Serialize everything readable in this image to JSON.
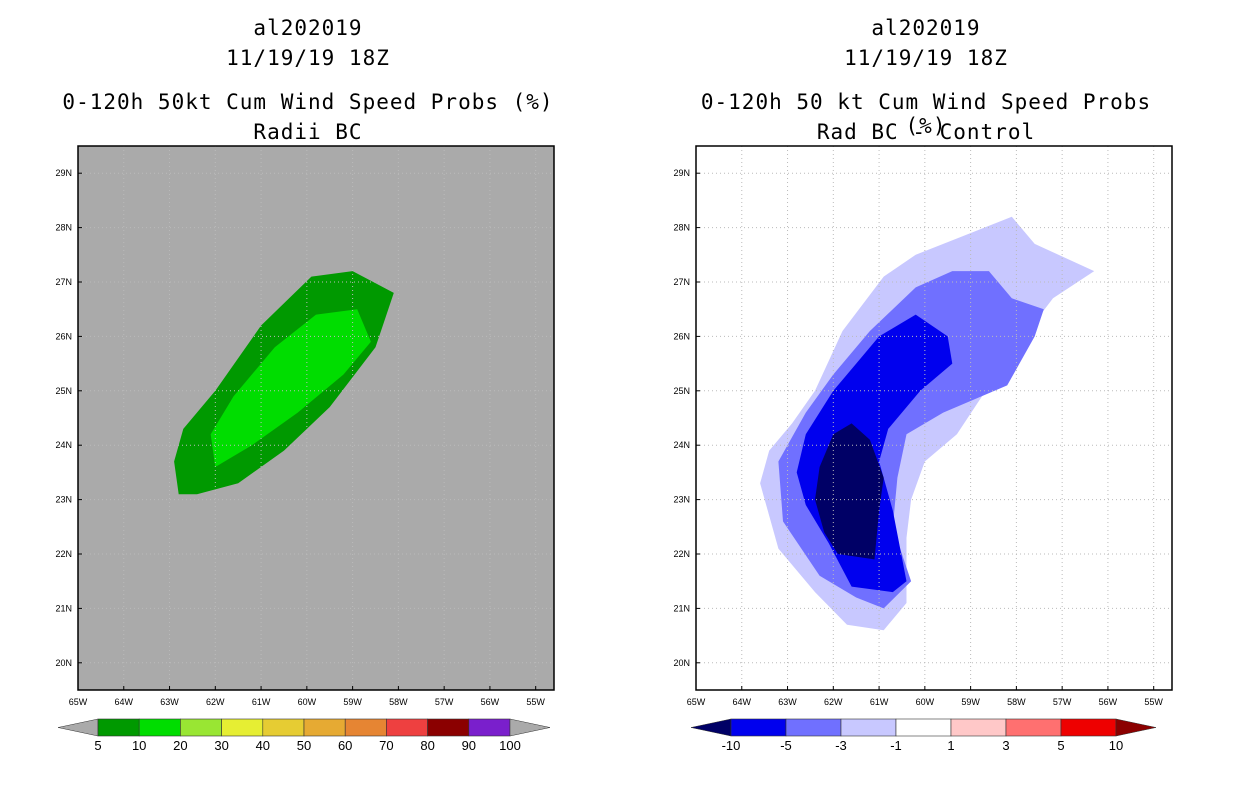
{
  "chart_data": [
    {
      "type": "contour-map",
      "title_lines": [
        "al202019",
        "11/19/19 18Z",
        "0-120h 50kt Cum Wind Speed Probs (%)",
        "Radii BC"
      ],
      "x_ticks": [
        "65W",
        "64W",
        "63W",
        "62W",
        "61W",
        "60W",
        "59W",
        "58W",
        "57W",
        "56W",
        "55W"
      ],
      "y_ticks": [
        "29N",
        "28N",
        "27N",
        "26N",
        "25N",
        "24N",
        "23N",
        "22N",
        "21N",
        "20N"
      ],
      "xlim": [
        -65,
        -54.6
      ],
      "ylim": [
        19.5,
        29.5
      ],
      "grid": true,
      "contours": [
        {
          "level": "5-10",
          "color": "#009900",
          "polygon": [
            [
              -62.8,
              23.1
            ],
            [
              -62.4,
              23.1
            ],
            [
              -61.5,
              23.3
            ],
            [
              -60.5,
              23.9
            ],
            [
              -59.5,
              24.7
            ],
            [
              -58.5,
              25.8
            ],
            [
              -58.1,
              26.8
            ],
            [
              -59.0,
              27.2
            ],
            [
              -59.9,
              27.1
            ],
            [
              -61.0,
              26.2
            ],
            [
              -62.0,
              25.0
            ],
            [
              -62.7,
              24.3
            ],
            [
              -62.9,
              23.7
            ]
          ]
        },
        {
          "level": "10-20",
          "color": "#00dd00",
          "polygon": [
            [
              -62.0,
              23.6
            ],
            [
              -61.2,
              24.0
            ],
            [
              -60.2,
              24.6
            ],
            [
              -59.2,
              25.3
            ],
            [
              -58.6,
              25.9
            ],
            [
              -58.9,
              26.5
            ],
            [
              -59.8,
              26.4
            ],
            [
              -60.7,
              25.8
            ],
            [
              -61.6,
              24.9
            ],
            [
              -62.1,
              24.2
            ]
          ]
        }
      ],
      "colorbar": {
        "labels": [
          "5",
          "10",
          "20",
          "30",
          "40",
          "50",
          "60",
          "70",
          "80",
          "90",
          "100"
        ],
        "colors": [
          "#009900",
          "#00dd00",
          "#99e633",
          "#e6ee33",
          "#e6cc33",
          "#e6aa33",
          "#e68533",
          "#ee4040",
          "#8b0000",
          "#7a1fcc"
        ],
        "under_color": "#aaaaaa",
        "over_color": "#aaaaaa"
      },
      "background_color": "#aaaaaa"
    },
    {
      "type": "contour-map",
      "title_lines": [
        "al202019",
        "11/19/19 18Z",
        "0-120h 50 kt Cum Wind Speed Probs (%)",
        "Rad BC - Control"
      ],
      "x_ticks": [
        "65W",
        "64W",
        "63W",
        "62W",
        "61W",
        "60W",
        "59W",
        "58W",
        "57W",
        "56W",
        "55W"
      ],
      "y_ticks": [
        "29N",
        "28N",
        "27N",
        "26N",
        "25N",
        "24N",
        "23N",
        "22N",
        "21N",
        "20N"
      ],
      "xlim": [
        -65,
        -54.6
      ],
      "ylim": [
        19.5,
        29.5
      ],
      "grid": true,
      "contours": [
        {
          "level": "-3 to -1",
          "color": "#c8c8ff",
          "polygon": [
            [
              -63.6,
              23.3
            ],
            [
              -63.2,
              22.1
            ],
            [
              -62.4,
              21.3
            ],
            [
              -61.7,
              20.7
            ],
            [
              -60.9,
              20.6
            ],
            [
              -60.4,
              21.1
            ],
            [
              -60.4,
              22.3
            ],
            [
              -60.3,
              23.0
            ],
            [
              -60.0,
              23.7
            ],
            [
              -59.3,
              24.2
            ],
            [
              -58.2,
              25.6
            ],
            [
              -57.2,
              26.7
            ],
            [
              -56.3,
              27.2
            ],
            [
              -57.6,
              27.7
            ],
            [
              -58.1,
              28.2
            ],
            [
              -59.3,
              27.8
            ],
            [
              -60.2,
              27.5
            ],
            [
              -60.9,
              27.1
            ],
            [
              -61.8,
              26.1
            ],
            [
              -62.4,
              25.0
            ],
            [
              -62.9,
              24.4
            ],
            [
              -63.4,
              23.9
            ]
          ]
        },
        {
          "level": "-5 to -3",
          "color": "#7070ff",
          "polygon": [
            [
              -63.1,
              22.6
            ],
            [
              -62.3,
              21.6
            ],
            [
              -61.5,
              21.2
            ],
            [
              -60.9,
              21.0
            ],
            [
              -60.3,
              21.5
            ],
            [
              -60.7,
              22.5
            ],
            [
              -60.6,
              23.4
            ],
            [
              -60.4,
              24.2
            ],
            [
              -59.6,
              24.6
            ],
            [
              -58.2,
              25.1
            ],
            [
              -57.6,
              26.0
            ],
            [
              -57.4,
              26.5
            ],
            [
              -58.1,
              26.7
            ],
            [
              -58.6,
              27.2
            ],
            [
              -59.4,
              27.2
            ],
            [
              -60.2,
              26.9
            ],
            [
              -61.2,
              26.1
            ],
            [
              -62.0,
              25.3
            ],
            [
              -62.6,
              24.6
            ],
            [
              -63.2,
              23.7
            ]
          ]
        },
        {
          "level": "-10 to -5",
          "color": "#0000ee",
          "polygon": [
            [
              -62.6,
              22.9
            ],
            [
              -62.1,
              22.2
            ],
            [
              -61.6,
              21.4
            ],
            [
              -60.7,
              21.3
            ],
            [
              -60.4,
              21.5
            ],
            [
              -60.7,
              22.8
            ],
            [
              -61.0,
              23.7
            ],
            [
              -60.8,
              24.3
            ],
            [
              -60.1,
              25.0
            ],
            [
              -59.4,
              25.5
            ],
            [
              -59.5,
              26.0
            ],
            [
              -60.2,
              26.4
            ],
            [
              -61.0,
              26.0
            ],
            [
              -61.5,
              25.5
            ],
            [
              -62.0,
              25.0
            ],
            [
              -62.6,
              24.2
            ],
            [
              -62.8,
              23.5
            ]
          ]
        },
        {
          "level": "< -10",
          "color": "#000066",
          "polygon": [
            [
              -62.2,
              22.4
            ],
            [
              -61.9,
              22.0
            ],
            [
              -61.1,
              21.9
            ],
            [
              -61.0,
              22.8
            ],
            [
              -60.9,
              23.4
            ],
            [
              -61.2,
              24.1
            ],
            [
              -61.6,
              24.4
            ],
            [
              -62.0,
              24.2
            ],
            [
              -62.3,
              23.6
            ],
            [
              -62.4,
              23.0
            ]
          ]
        }
      ],
      "colorbar": {
        "labels": [
          "-10",
          "-5",
          "-3",
          "-1",
          "1",
          "3",
          "5",
          "10"
        ],
        "colors": [
          "#0000ee",
          "#7070ff",
          "#c8c8ff",
          "#ffffff",
          "#ffc8c8",
          "#ff7070",
          "#ee0000"
        ],
        "under_color": "#000066",
        "over_color": "#8b0000"
      },
      "background_color": "#ffffff"
    }
  ]
}
